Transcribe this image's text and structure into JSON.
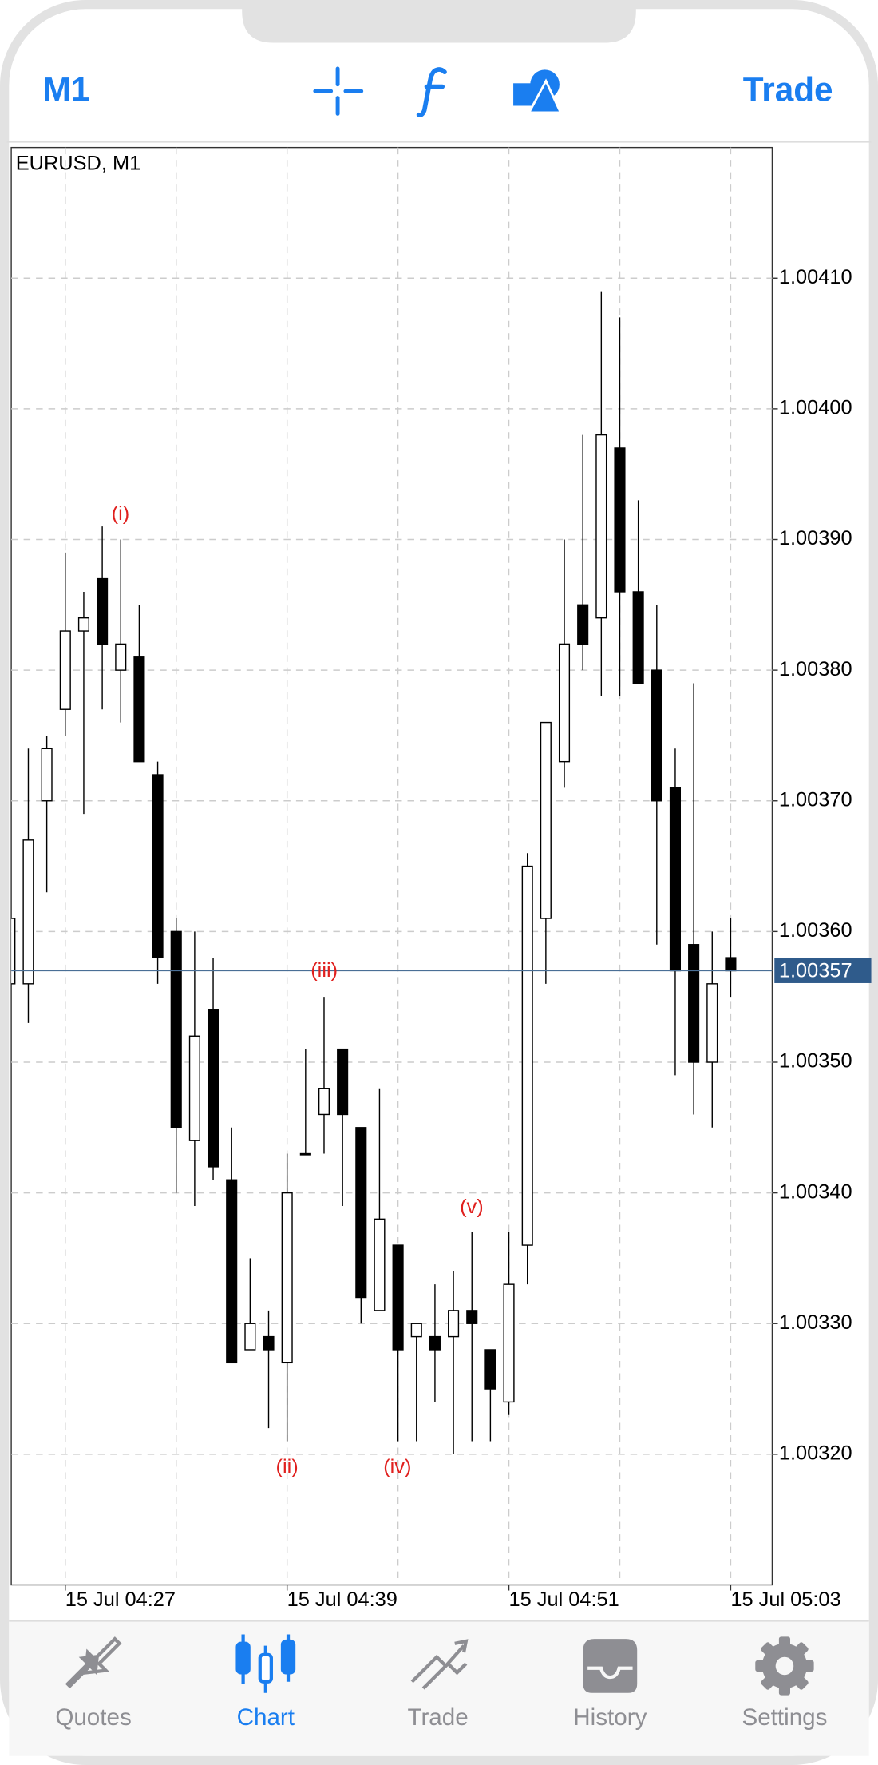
{
  "header": {
    "left": "M1",
    "right": "Trade"
  },
  "tabs": [
    "Quotes",
    "Chart",
    "Trade",
    "History",
    "Settings"
  ],
  "chart_data": {
    "type": "candlestick",
    "title": "EURUSD, M1",
    "categories": [
      null,
      null,
      null,
      "15 Jul 04:27",
      null,
      null,
      null,
      null,
      null,
      null,
      null,
      null,
      null,
      null,
      null,
      "15 Jul 04:39",
      null,
      null,
      null,
      null,
      null,
      null,
      null,
      null,
      null,
      null,
      null,
      "15 Jul 04:51",
      null,
      null,
      null,
      null,
      null,
      null,
      null,
      null,
      null,
      null,
      null,
      "15 Jul 05:03"
    ],
    "open": [
      1.00356,
      1.00356,
      1.0037,
      1.00377,
      1.00383,
      1.00387,
      1.0038,
      1.00381,
      1.00372,
      1.0036,
      1.00344,
      1.00354,
      1.00341,
      1.00328,
      1.00329,
      1.00327,
      1.00343,
      1.00346,
      1.00351,
      1.00345,
      1.00331,
      1.00336,
      1.00329,
      1.00329,
      1.00329,
      1.00331,
      1.00328,
      1.00324,
      1.00336,
      1.00361,
      1.00373,
      1.00385,
      1.00384,
      1.00397,
      1.00386,
      1.0038,
      1.00371,
      1.00359,
      1.0035,
      1.00358
    ],
    "high": [
      1.00362,
      1.00374,
      1.00375,
      1.00389,
      1.00386,
      1.00391,
      1.0039,
      1.00385,
      1.00373,
      1.00361,
      1.0036,
      1.00358,
      1.00345,
      1.00335,
      1.00331,
      1.00343,
      1.00351,
      1.00355,
      1.00351,
      1.00345,
      1.00348,
      1.00336,
      1.0033,
      1.00333,
      1.00334,
      1.00337,
      1.00328,
      1.00337,
      1.00366,
      1.00376,
      1.0039,
      1.00398,
      1.00409,
      1.00407,
      1.00393,
      1.00385,
      1.00374,
      1.00379,
      1.0036,
      1.00361
    ],
    "low": [
      1.00355,
      1.00353,
      1.00363,
      1.00375,
      1.00369,
      1.00377,
      1.00376,
      1.00373,
      1.00356,
      1.0034,
      1.00339,
      1.00341,
      1.00327,
      1.00328,
      1.00322,
      1.00321,
      1.00343,
      1.00343,
      1.00339,
      1.0033,
      1.00331,
      1.00321,
      1.00321,
      1.00324,
      1.0032,
      1.00321,
      1.00321,
      1.00323,
      1.00333,
      1.00356,
      1.00371,
      1.0038,
      1.00378,
      1.00378,
      1.00379,
      1.00359,
      1.00349,
      1.00346,
      1.00345,
      1.00355
    ],
    "close": [
      1.00361,
      1.00367,
      1.00374,
      1.00383,
      1.00384,
      1.00382,
      1.00382,
      1.00373,
      1.00358,
      1.00345,
      1.00352,
      1.00342,
      1.00327,
      1.0033,
      1.00328,
      1.0034,
      1.00343,
      1.00348,
      1.00346,
      1.00332,
      1.00338,
      1.00328,
      1.0033,
      1.00328,
      1.00331,
      1.0033,
      1.00325,
      1.00333,
      1.00365,
      1.00376,
      1.00382,
      1.00382,
      1.00398,
      1.00386,
      1.00379,
      1.0037,
      1.00357,
      1.0035,
      1.00356,
      1.00357
    ],
    "up_color": "#ffffff",
    "down_color": "#000000",
    "ylim": [
      1.0031,
      1.0042
    ],
    "yticks": [
      {
        "value": 1.0032,
        "label": "1.00320"
      },
      {
        "value": 1.0033,
        "label": "1.00330"
      },
      {
        "value": 1.0034,
        "label": "1.00340"
      },
      {
        "value": 1.0035,
        "label": "1.00350"
      },
      {
        "value": 1.0036,
        "label": "1.00360"
      },
      {
        "value": 1.0037,
        "label": "1.00370"
      },
      {
        "value": 1.0038,
        "label": "1.00380"
      },
      {
        "value": 1.0039,
        "label": "1.00390"
      },
      {
        "value": 1.004,
        "label": "1.00400"
      },
      {
        "value": 1.0041,
        "label": "1.00410"
      }
    ],
    "current_price": 1.00357,
    "grid": true,
    "annotations": [
      "(i)",
      "(ii)",
      "(iii)",
      "(iv)",
      "(v)"
    ]
  }
}
